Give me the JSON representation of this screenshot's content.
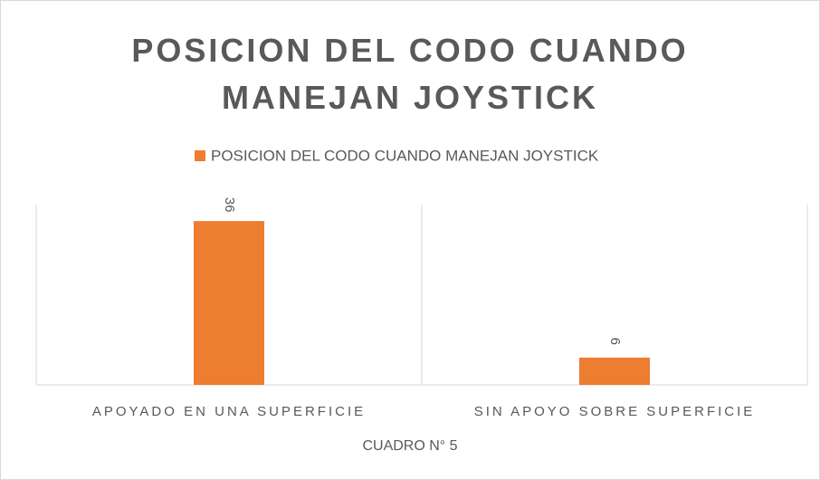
{
  "chart_data": {
    "type": "bar",
    "title": "POSICION DEL CODO CUANDO MANEJAN JOYSTICK",
    "x_label": "CUADRO N° 5",
    "categories": [
      "APOYADO EN UNA SUPERFICIE",
      "SIN APOYO SOBRE SUPERFICIE"
    ],
    "series": [
      {
        "name": "POSICION DEL CODO CUANDO MANEJAN JOYSTICK",
        "color": "#ed7d31",
        "values": [
          36,
          6
        ]
      }
    ],
    "ylim": [
      0,
      40
    ],
    "legend": "top"
  }
}
